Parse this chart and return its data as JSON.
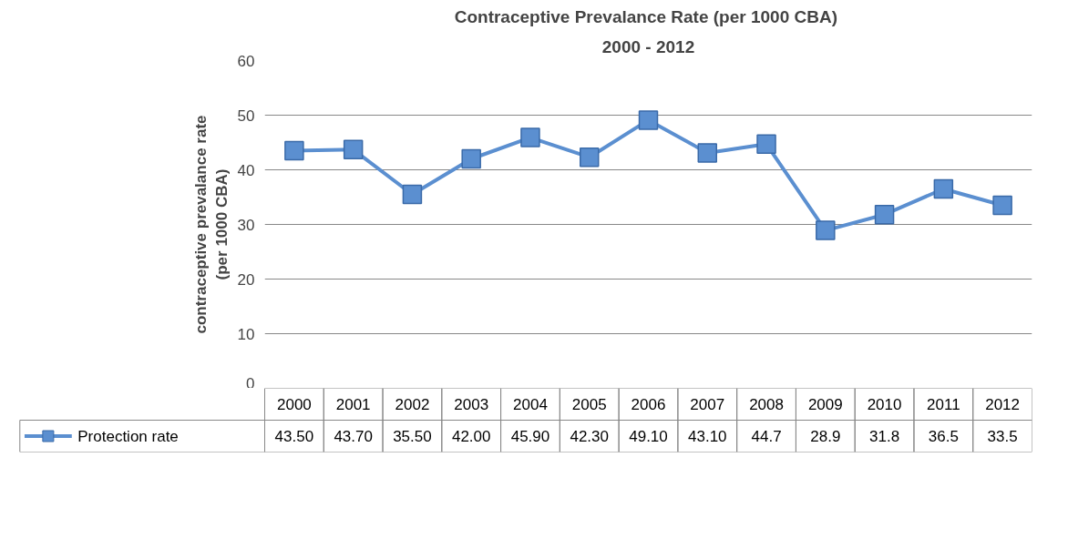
{
  "chart_data": {
    "type": "line",
    "title": "Contraceptive Prevalance Rate  (per 1000 CBA)",
    "subtitle": "2000 - 2012",
    "ylabel": "contraceptive prevalance rate\n(per 1000 CBA)",
    "categories": [
      "2000",
      "2001",
      "2002",
      "2003",
      "2004",
      "2005",
      "2006",
      "2007",
      "2008",
      "2009",
      "2010",
      "2011",
      "2012"
    ],
    "series": [
      {
        "name": "Protection rate",
        "color": "#5b8fd0",
        "values": [
          43.5,
          43.7,
          35.5,
          42.0,
          45.9,
          42.3,
          49.1,
          43.1,
          44.7,
          28.9,
          31.8,
          36.5,
          33.5
        ],
        "value_labels": [
          "43.50",
          "43.70",
          "35.50",
          "42.00",
          "45.90",
          "42.30",
          "49.10",
          "43.10",
          "44.7",
          "28.9",
          "31.8",
          "36.5",
          "33.5"
        ]
      }
    ],
    "ylim": [
      0,
      60
    ],
    "yticks": [
      0,
      10,
      20,
      30,
      40,
      50,
      60
    ],
    "grid": "y",
    "legend": "bottom",
    "marker": "square",
    "line_style": "solid"
  }
}
